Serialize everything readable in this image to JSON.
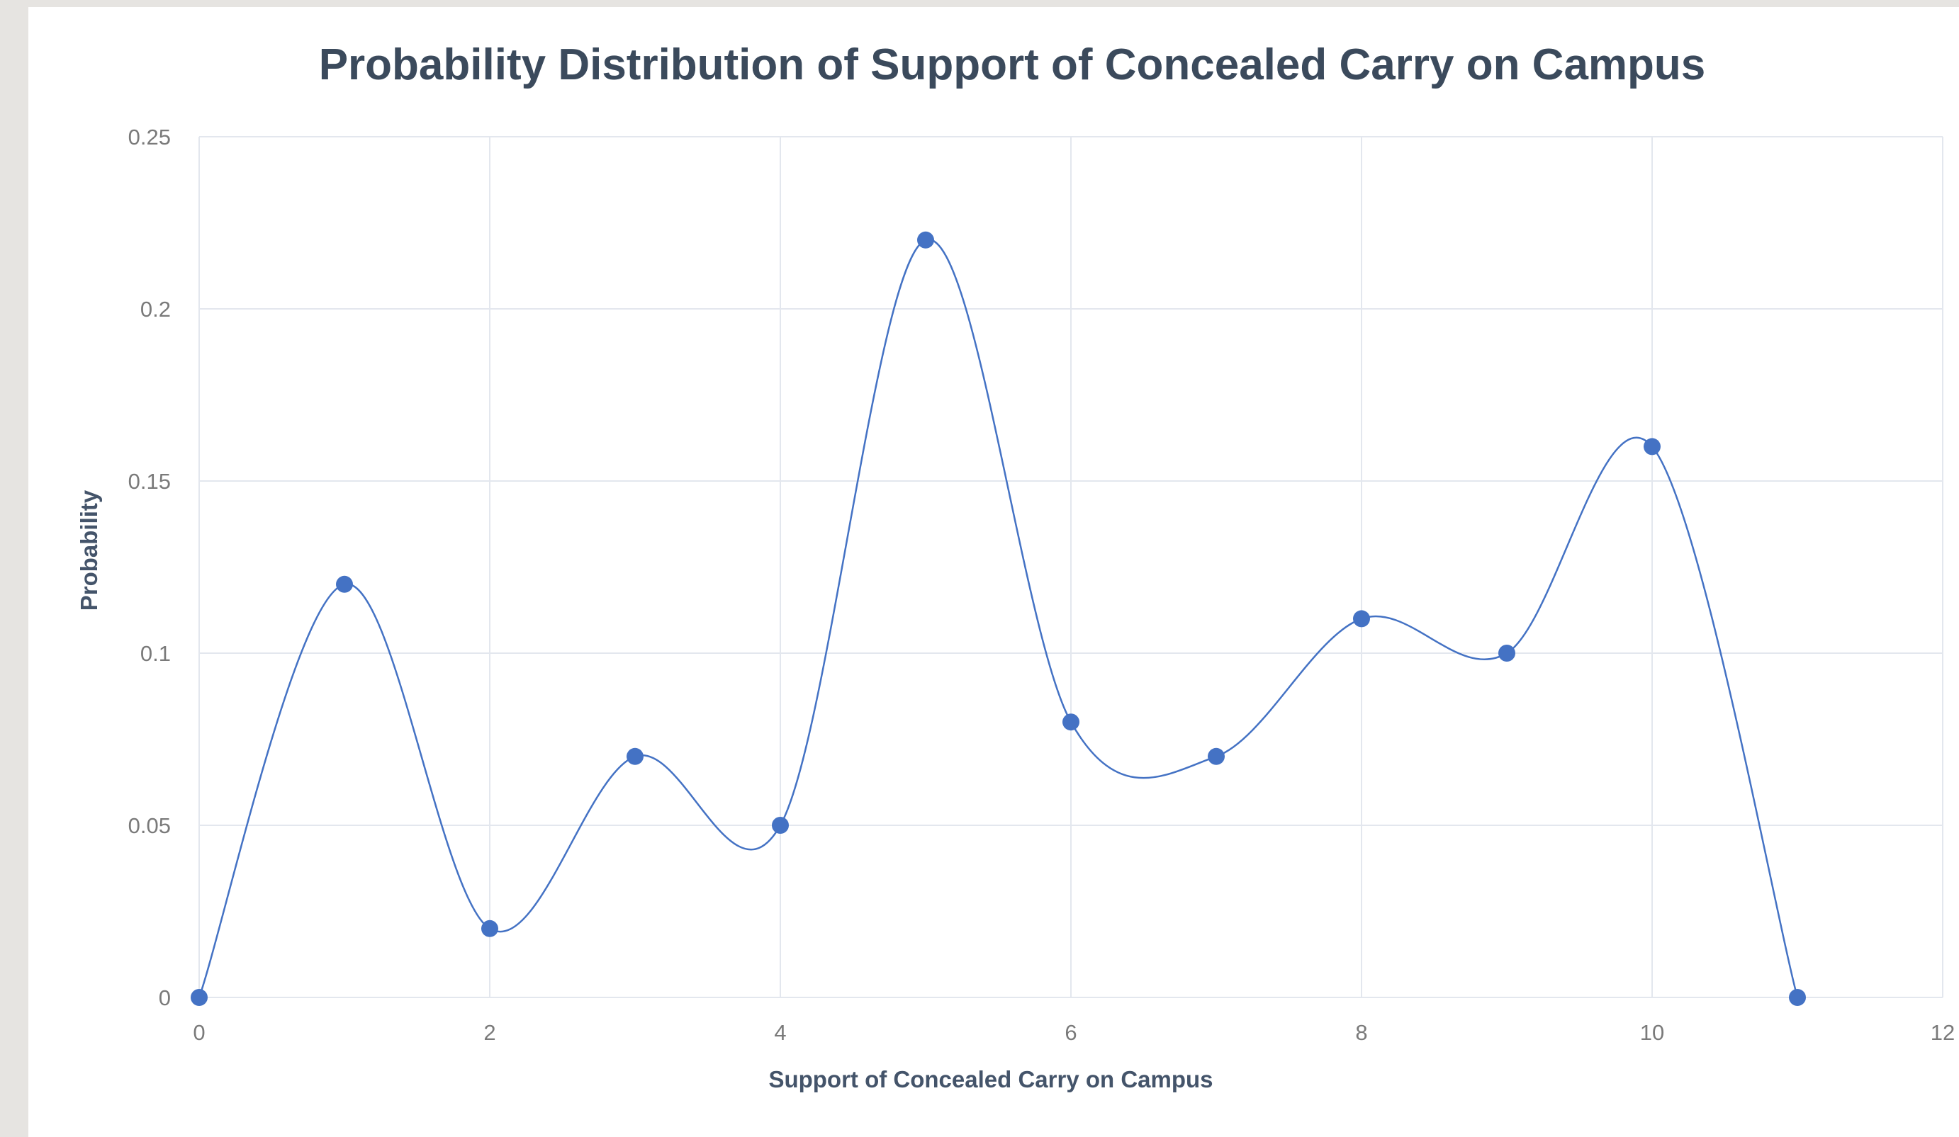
{
  "chart_data": {
    "type": "scatter",
    "title": "Probability Distribution of Support of Concealed Carry on Campus",
    "xlabel": "Support of Concealed Carry on Campus",
    "ylabel": "Probability",
    "xlim": [
      0,
      12
    ],
    "ylim": [
      0,
      0.25
    ],
    "x_ticks": [
      "0",
      "2",
      "4",
      "6",
      "8",
      "10",
      "12"
    ],
    "y_ticks": [
      "0",
      "0.05",
      "0.1",
      "0.15",
      "0.2",
      "0.25"
    ],
    "grid": true,
    "smooth_line": true,
    "series": [
      {
        "x": [
          0,
          1,
          2,
          3,
          4,
          5,
          6,
          7,
          8,
          9,
          10,
          11
        ],
        "y": [
          0,
          0.12,
          0.02,
          0.07,
          0.05,
          0.22,
          0.08,
          0.07,
          0.11,
          0.1,
          0.16,
          0
        ]
      }
    ],
    "colors": {
      "marker": "#4472c4",
      "line": "#4472c4",
      "grid": "#e3e7ee"
    }
  }
}
